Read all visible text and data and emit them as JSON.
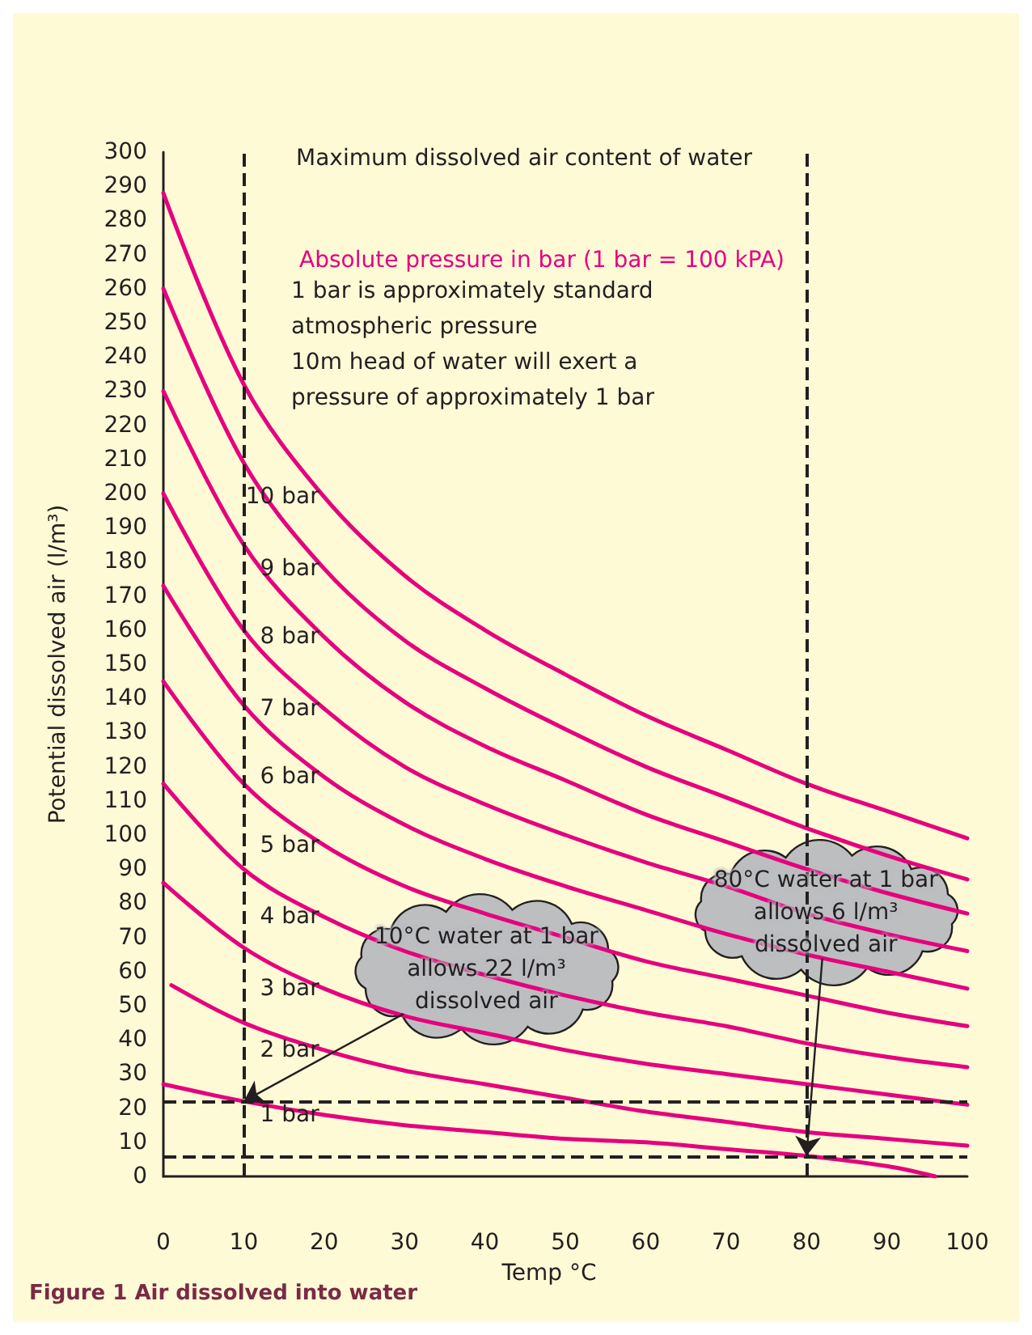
{
  "chart_data": {
    "type": "line",
    "title": "Maximum dissolved air content of water",
    "subtitle": "Absolute pressure in bar (1 bar = 100 kPA)",
    "xlabel": "Temp °C",
    "ylabel": "Potential dissolved air (l/m³)",
    "x": [
      0,
      10,
      20,
      30,
      40,
      50,
      60,
      70,
      80,
      90,
      100
    ],
    "series": [
      {
        "name": "1 bar",
        "color": "#e6007e",
        "x": [
          0,
          10,
          20,
          30,
          40,
          50,
          60,
          70,
          80,
          90,
          96
        ],
        "values": [
          27,
          22,
          18,
          15,
          13,
          11,
          10,
          8,
          6,
          3,
          0
        ]
      },
      {
        "name": "2 bar",
        "color": "#e6007e",
        "x": [
          1,
          10,
          20,
          30,
          40,
          50,
          60,
          70,
          80,
          90,
          100
        ],
        "values": [
          56,
          45,
          37,
          31,
          27,
          23,
          19,
          16,
          13,
          11,
          9
        ]
      },
      {
        "name": "3 bar",
        "color": "#e6007e",
        "values": [
          86,
          67,
          55,
          47,
          42,
          37,
          33,
          30,
          27,
          24,
          21
        ]
      },
      {
        "name": "4 bar",
        "color": "#e6007e",
        "values": [
          115,
          90,
          76,
          66,
          59,
          53,
          48,
          44,
          39,
          35,
          32
        ]
      },
      {
        "name": "5 bar",
        "color": "#e6007e",
        "values": [
          145,
          115,
          97,
          85,
          77,
          70,
          63,
          58,
          53,
          48,
          44
        ]
      },
      {
        "name": "6 bar",
        "color": "#e6007e",
        "values": [
          173,
          138,
          117,
          103,
          93,
          85,
          78,
          71,
          65,
          60,
          55
        ]
      },
      {
        "name": "7 bar",
        "color": "#e6007e",
        "values": [
          200,
          160,
          137,
          120,
          109,
          100,
          92,
          85,
          77,
          71,
          66
        ]
      },
      {
        "name": "8 bar",
        "color": "#e6007e",
        "values": [
          230,
          185,
          158,
          139,
          126,
          116,
          106,
          98,
          90,
          83,
          77
        ]
      },
      {
        "name": "9 bar",
        "color": "#e6007e",
        "values": [
          260,
          209,
          178,
          157,
          143,
          131,
          120,
          111,
          102,
          94,
          87
        ]
      },
      {
        "name": "10 bar",
        "color": "#e6007e",
        "values": [
          288,
          232,
          199,
          176,
          160,
          147,
          135,
          125,
          115,
          107,
          99
        ]
      }
    ],
    "xlim": [
      0,
      100
    ],
    "xticks": [
      0,
      10,
      20,
      30,
      40,
      50,
      60,
      70,
      80,
      90,
      100
    ],
    "ylim": [
      0,
      300
    ],
    "yticks": [
      0,
      10,
      20,
      30,
      40,
      50,
      60,
      70,
      80,
      90,
      100,
      110,
      120,
      130,
      140,
      150,
      160,
      170,
      180,
      190,
      200,
      210,
      220,
      230,
      240,
      250,
      260,
      270,
      280,
      290,
      300
    ],
    "grid": false,
    "legend": false,
    "marker": "none",
    "line_style": "solid",
    "ref_lines": [
      {
        "axis": "x",
        "value": 10,
        "color": "#231f20",
        "line_style": "dashed"
      },
      {
        "axis": "y",
        "value": 22,
        "color": "#231f20",
        "line_style": "dashed"
      },
      {
        "axis": "x",
        "value": 80,
        "color": "#231f20",
        "line_style": "dashed"
      },
      {
        "axis": "y",
        "value": 6,
        "color": "#231f20",
        "line_style": "dashed"
      }
    ],
    "annotations": [
      "1 bar is approximately standard atmospheric pressure",
      "10m head of water will exert a pressure of approximately 1 bar",
      {
        "text": "10°C water at 1 bar allows 22 l/m³ dissolved air",
        "x": 10,
        "y": 22
      },
      {
        "text": "80°C water at 1 bar allows 6 l/m³ dissolved air",
        "x": 80,
        "y": 6
      },
      "Figure 1 Air dissolved into water"
    ]
  }
}
